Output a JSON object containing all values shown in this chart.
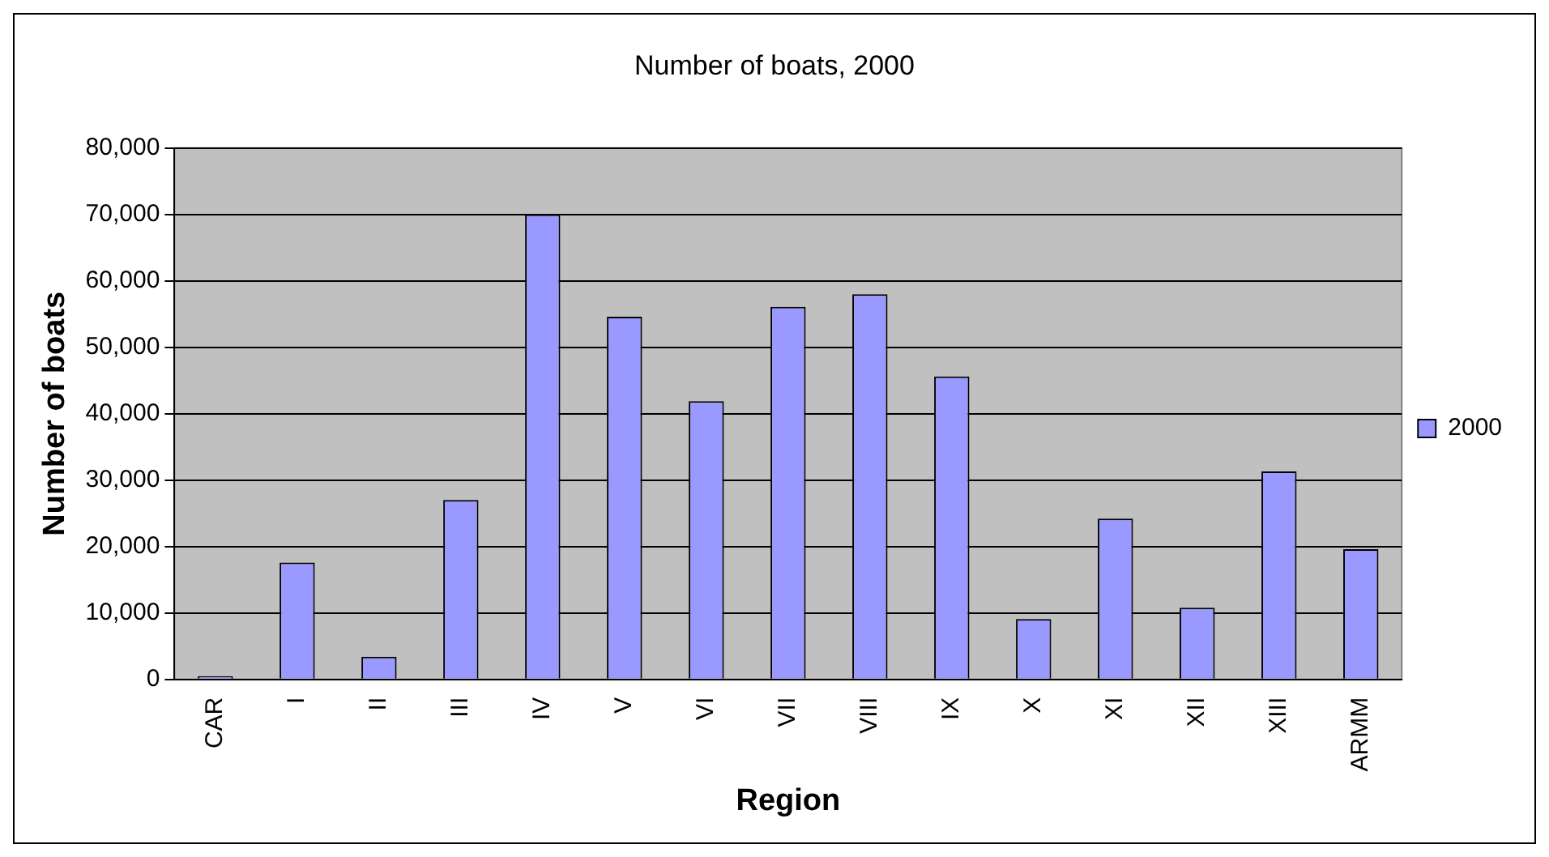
{
  "chart_data": {
    "type": "bar",
    "title": "Number of boats, 2000",
    "xlabel": "Region",
    "ylabel": "Number of boats",
    "categories": [
      "CAR",
      "I",
      "II",
      "III",
      "IV",
      "V",
      "VI",
      "VII",
      "VIII",
      "IX",
      "X",
      "XI",
      "XII",
      "XIII",
      "ARMM"
    ],
    "series": [
      {
        "name": "2000",
        "color": "#9999ff",
        "values": [
          500,
          17600,
          3400,
          27000,
          70000,
          54600,
          41900,
          56100,
          58000,
          45600,
          9100,
          24200,
          10800,
          31300,
          19600
        ]
      }
    ],
    "ylim": [
      0,
      80000
    ],
    "yticks": [
      {
        "value": 0,
        "label": "0"
      },
      {
        "value": 10000,
        "label": "10,000"
      },
      {
        "value": 20000,
        "label": "20,000"
      },
      {
        "value": 30000,
        "label": "30,000"
      },
      {
        "value": 40000,
        "label": "40,000"
      },
      {
        "value": 50000,
        "label": "50,000"
      },
      {
        "value": 60000,
        "label": "60,000"
      },
      {
        "value": 70000,
        "label": "70,000"
      },
      {
        "value": 80000,
        "label": "80,000"
      }
    ],
    "grid": "y",
    "legend": "right"
  }
}
